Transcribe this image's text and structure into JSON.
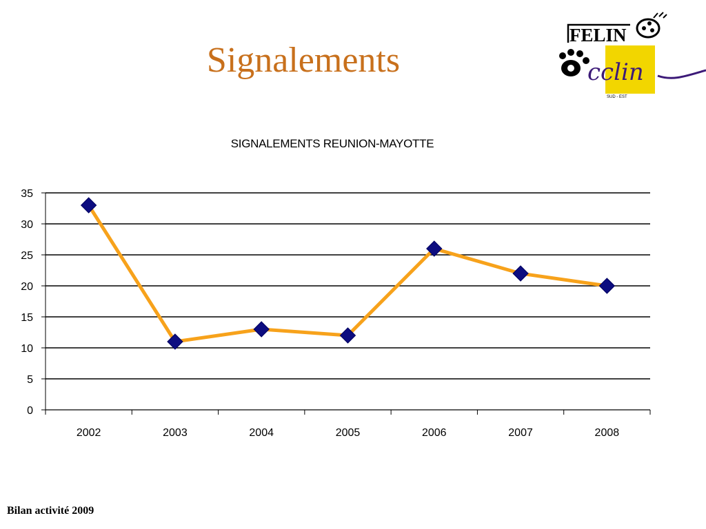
{
  "slide": {
    "title": "Signalements",
    "footer": "Bilan activité 2009"
  },
  "logo": {
    "text_main": "FELIN",
    "text_brand": "cclin",
    "text_sub": "SUD - EST",
    "colors": {
      "yellow": "#f2d600",
      "purple": "#3c1a78",
      "black": "#000000"
    }
  },
  "chart_data": {
    "type": "line",
    "title": "SIGNALEMENTS  REUNION-MAYOTTE",
    "categories": [
      "2002",
      "2003",
      "2004",
      "2005",
      "2006",
      "2007",
      "2008"
    ],
    "series": [
      {
        "values": [
          33,
          11,
          13,
          12,
          26,
          22,
          20
        ],
        "line_color": "#f7a21b",
        "marker_color": "#0d0d80",
        "marker": "diamond"
      }
    ],
    "ylim": [
      0,
      35
    ],
    "yticks": [
      0,
      5,
      10,
      15,
      20,
      25,
      30,
      35
    ],
    "grid": true,
    "legend": "none"
  }
}
